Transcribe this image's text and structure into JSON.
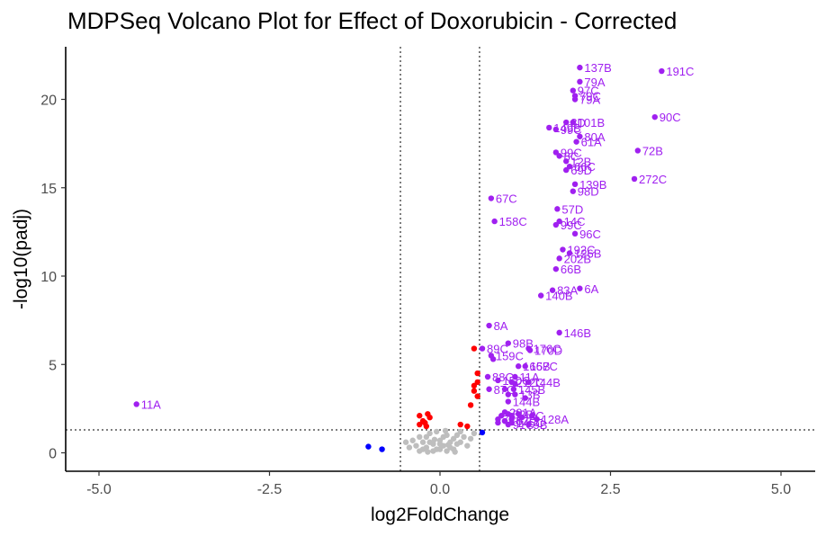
{
  "chart_data": {
    "type": "scatter",
    "title": "MDPSeq Volcano Plot for Effect of Doxorubicin - Corrected",
    "xlabel": "log2FoldChange",
    "ylabel": "-log10(padj)",
    "xlim": [
      -5.4,
      6.3
    ],
    "ylim": [
      -1.0,
      23.0
    ],
    "x_ticks": [
      -5.0,
      -2.5,
      0.0,
      2.5,
      5.0
    ],
    "x_tick_labels": [
      "-5.0",
      "-2.5",
      "0.0",
      "2.5",
      "5.0"
    ],
    "y_ticks": [
      0,
      5,
      10,
      15,
      20
    ],
    "y_tick_labels": [
      "0",
      "5",
      "10",
      "15",
      "20"
    ],
    "grid": false,
    "reference_lines": {
      "x": [
        -0.58,
        0.58
      ],
      "y": [
        1.3
      ],
      "style": "dotted"
    },
    "colors": {
      "not_significant": "#bebebe",
      "significant_small_fc": "#ff0000",
      "significant_down_fc": "#0000ff",
      "labeled": "#a020f0"
    },
    "series": [
      {
        "color": "#bebebe",
        "points": [
          [
            -0.3,
            0.9
          ],
          [
            -0.25,
            0.6
          ],
          [
            -0.2,
            0.3
          ],
          [
            -0.15,
            1.1
          ],
          [
            -0.1,
            0.5
          ],
          [
            -0.05,
            0.2
          ],
          [
            0.0,
            0.7
          ],
          [
            0.05,
            0.4
          ],
          [
            0.1,
            1.0
          ],
          [
            0.15,
            0.3
          ],
          [
            0.2,
            0.8
          ],
          [
            0.25,
            0.5
          ],
          [
            0.3,
            1.2
          ],
          [
            -0.35,
            0.4
          ],
          [
            -0.4,
            0.7
          ],
          [
            -0.2,
            0.9
          ],
          [
            -0.1,
            0.1
          ],
          [
            0.0,
            0.2
          ],
          [
            0.1,
            0.1
          ],
          [
            0.2,
            0.2
          ],
          [
            0.3,
            0.6
          ],
          [
            0.35,
            0.9
          ],
          [
            -0.45,
            0.3
          ],
          [
            0.4,
            0.4
          ],
          [
            -0.15,
            0.6
          ],
          [
            0.05,
            0.9
          ],
          [
            -0.05,
            1.2
          ],
          [
            0.15,
            0.6
          ],
          [
            0.25,
            1.0
          ],
          [
            -0.3,
            0.1
          ],
          [
            0.45,
            0.8
          ],
          [
            0.5,
            1.1
          ],
          [
            -0.5,
            0.6
          ],
          [
            0.0,
            0.5
          ],
          [
            -0.25,
            0.2
          ],
          [
            0.12,
            0.45
          ],
          [
            -0.08,
            0.75
          ],
          [
            0.22,
            0.05
          ],
          [
            -0.18,
            0.05
          ],
          [
            0.08,
            1.25
          ]
        ]
      },
      {
        "color": "#ff0000",
        "points": [
          [
            -0.3,
            2.1
          ],
          [
            -0.25,
            1.8
          ],
          [
            -0.2,
            1.5
          ],
          [
            -0.15,
            2.0
          ],
          [
            -0.3,
            1.6
          ],
          [
            0.3,
            1.6
          ],
          [
            0.4,
            1.5
          ],
          [
            0.45,
            2.7
          ],
          [
            0.5,
            3.5
          ],
          [
            0.55,
            4.0
          ],
          [
            0.5,
            3.8
          ],
          [
            0.55,
            3.2
          ],
          [
            0.5,
            5.9
          ],
          [
            0.55,
            4.5
          ],
          [
            -0.22,
            1.7
          ],
          [
            -0.18,
            2.2
          ]
        ]
      },
      {
        "color": "#0000ff",
        "points": [
          [
            -1.05,
            0.35
          ],
          [
            -0.85,
            0.2
          ],
          [
            0.62,
            1.15
          ]
        ]
      },
      {
        "color": "#a020f0",
        "points": [
          [
            0.78,
            5.3
          ],
          [
            0.95,
            3.6
          ],
          [
            1.1,
            3.9
          ],
          [
            1.25,
            3.1
          ],
          [
            0.95,
            1.8
          ],
          [
            1.05,
            1.9
          ],
          [
            1.2,
            2.0
          ],
          [
            1.35,
            2.1
          ],
          [
            1.15,
            2.2
          ],
          [
            0.9,
            2.1
          ],
          [
            1.0,
            3.3
          ],
          [
            0.85,
            1.7
          ]
        ]
      }
    ],
    "labeled_points": [
      {
        "label": "137B",
        "x": 2.05,
        "y": 21.8
      },
      {
        "label": "191C",
        "x": 3.25,
        "y": 21.6
      },
      {
        "label": "79A",
        "x": 2.05,
        "y": 21.0
      },
      {
        "label": "97C",
        "x": 1.95,
        "y": 20.5
      },
      {
        "label": "79C",
        "x": 1.98,
        "y": 20.2
      },
      {
        "label": "79A",
        "x": 1.98,
        "y": 20.0
      },
      {
        "label": "90C",
        "x": 3.15,
        "y": 19.0
      },
      {
        "label": "8D",
        "x": 1.85,
        "y": 18.7
      },
      {
        "label": "101B",
        "x": 1.95,
        "y": 18.7
      },
      {
        "label": "149B",
        "x": 1.6,
        "y": 18.4
      },
      {
        "label": "99C",
        "x": 1.7,
        "y": 18.3
      },
      {
        "label": "80A",
        "x": 2.05,
        "y": 17.9
      },
      {
        "label": "61A",
        "x": 2.0,
        "y": 17.6
      },
      {
        "label": "72B",
        "x": 2.9,
        "y": 17.1
      },
      {
        "label": "99C",
        "x": 1.7,
        "y": 17.0
      },
      {
        "label": "8C",
        "x": 1.75,
        "y": 16.8
      },
      {
        "label": "12B",
        "x": 1.85,
        "y": 16.5
      },
      {
        "label": "66C",
        "x": 1.9,
        "y": 16.2
      },
      {
        "label": "69D",
        "x": 1.85,
        "y": 16.0
      },
      {
        "label": "272C",
        "x": 2.85,
        "y": 15.5
      },
      {
        "label": "139B",
        "x": 1.98,
        "y": 15.2
      },
      {
        "label": "98D",
        "x": 1.95,
        "y": 14.8
      },
      {
        "label": "67C",
        "x": 0.75,
        "y": 14.4
      },
      {
        "label": "57D",
        "x": 1.72,
        "y": 13.8
      },
      {
        "label": "158C",
        "x": 0.8,
        "y": 13.1
      },
      {
        "label": "14C",
        "x": 1.75,
        "y": 13.1
      },
      {
        "label": "99C",
        "x": 1.7,
        "y": 12.9
      },
      {
        "label": "96C",
        "x": 1.98,
        "y": 12.4
      },
      {
        "label": "192C",
        "x": 1.8,
        "y": 11.5
      },
      {
        "label": "126B",
        "x": 1.9,
        "y": 11.3
      },
      {
        "label": "202B",
        "x": 1.75,
        "y": 11.0
      },
      {
        "label": "66B",
        "x": 1.7,
        "y": 10.4
      },
      {
        "label": "83A",
        "x": 1.65,
        "y": 9.2
      },
      {
        "label": "6A",
        "x": 2.05,
        "y": 9.3
      },
      {
        "label": "140B",
        "x": 1.48,
        "y": 8.9
      },
      {
        "label": "8A",
        "x": 0.72,
        "y": 7.2
      },
      {
        "label": "146B",
        "x": 1.75,
        "y": 6.8
      },
      {
        "label": "98B",
        "x": 1.0,
        "y": 6.2
      },
      {
        "label": "89C",
        "x": 0.62,
        "y": 5.9
      },
      {
        "label": "176C",
        "x": 1.3,
        "y": 5.9
      },
      {
        "label": "170D",
        "x": 1.32,
        "y": 5.8
      },
      {
        "label": "159C",
        "x": 0.75,
        "y": 5.5
      },
      {
        "label": "166B",
        "x": 1.15,
        "y": 4.9
      },
      {
        "label": "157C",
        "x": 1.25,
        "y": 4.9
      },
      {
        "label": "88C",
        "x": 0.7,
        "y": 4.3
      },
      {
        "label": "11A",
        "x": 1.1,
        "y": 4.3
      },
      {
        "label": "150C",
        "x": 0.85,
        "y": 4.1
      },
      {
        "label": "212C",
        "x": 1.05,
        "y": 4.0
      },
      {
        "label": "144B",
        "x": 1.3,
        "y": 4.0
      },
      {
        "label": "87C",
        "x": 0.72,
        "y": 3.6
      },
      {
        "label": "145B",
        "x": 1.08,
        "y": 3.6
      },
      {
        "label": "13B",
        "x": 1.1,
        "y": 3.3
      },
      {
        "label": "144B",
        "x": 1.0,
        "y": 2.9
      },
      {
        "label": "201A",
        "x": 0.95,
        "y": 2.3
      },
      {
        "label": "52B",
        "x": 1.0,
        "y": 2.2
      },
      {
        "label": "144C",
        "x": 1.05,
        "y": 2.1
      },
      {
        "label": "72A",
        "x": 0.85,
        "y": 1.9
      },
      {
        "label": "167C",
        "x": 0.95,
        "y": 1.8
      },
      {
        "label": "145C",
        "x": 1.05,
        "y": 1.7
      },
      {
        "label": "128A",
        "x": 1.42,
        "y": 1.9
      },
      {
        "label": "91C",
        "x": 1.0,
        "y": 1.6
      },
      {
        "label": "9B",
        "x": 1.3,
        "y": 1.6
      },
      {
        "label": "11A",
        "x": -4.45,
        "y": 2.75
      }
    ]
  }
}
